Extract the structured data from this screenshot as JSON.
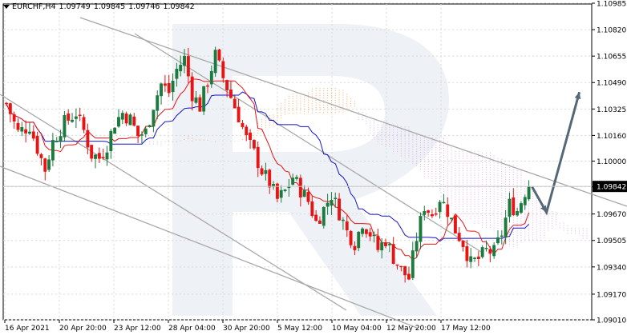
{
  "header": {
    "symbol": "EURCHF,H4",
    "open": "1.09749",
    "high": "1.09845",
    "low": "1.09746",
    "close": "1.09842"
  },
  "chart_data": {
    "type": "candlestick",
    "symbol": "EURCHF",
    "timeframe": "H4",
    "current_price": "1.09842",
    "ylim": [
      1.0901,
      1.1098
    ],
    "y_ticks": [
      "1.10985",
      "1.10820",
      "1.10655",
      "1.10490",
      "1.10325",
      "1.10160",
      "1.10000",
      "1.09840",
      "1.09670",
      "1.09505",
      "1.09340",
      "1.09170",
      "1.09010"
    ],
    "x_ticks": [
      "16 Apr 2021",
      "20 Apr 20:00",
      "23 Apr 12:00",
      "28 Apr 04:00",
      "30 Apr 20:00",
      "5 May 12:00",
      "10 May 04:00",
      "12 May 20:00",
      "17 May 12:00"
    ],
    "close_path": [
      [
        0,
        1.1036
      ],
      [
        3,
        1.1018
      ],
      [
        6,
        1.1022
      ],
      [
        8,
        1.1008
      ],
      [
        10,
        1.0995
      ],
      [
        12,
        1.1012
      ],
      [
        15,
        1.1024
      ],
      [
        18,
        1.103
      ],
      [
        20,
        1.1019
      ],
      [
        22,
        1.1004
      ],
      [
        24,
        1.1002
      ],
      [
        26,
        1.101
      ],
      [
        28,
        1.1024
      ],
      [
        30,
        1.103
      ],
      [
        32,
        1.1026
      ],
      [
        34,
        1.1016
      ],
      [
        36,
        1.1018
      ],
      [
        38,
        1.1035
      ],
      [
        40,
        1.1048
      ],
      [
        42,
        1.1043
      ],
      [
        44,
        1.1057
      ],
      [
        46,
        1.1064
      ],
      [
        48,
        1.1042
      ],
      [
        50,
        1.1034
      ],
      [
        52,
        1.105
      ],
      [
        54,
        1.1066
      ],
      [
        56,
        1.1052
      ],
      [
        58,
        1.104
      ],
      [
        60,
        1.1028
      ],
      [
        62,
        1.1014
      ],
      [
        64,
        1.1005
      ],
      [
        66,
        1.0994
      ],
      [
        68,
        1.0986
      ],
      [
        70,
        1.0976
      ],
      [
        72,
        1.0981
      ],
      [
        74,
        1.099
      ],
      [
        76,
        1.0982
      ],
      [
        78,
        1.0975
      ],
      [
        80,
        1.0962
      ],
      [
        82,
        1.097
      ],
      [
        84,
        1.0979
      ],
      [
        86,
        1.0968
      ],
      [
        88,
        1.0956
      ],
      [
        90,
        1.0949
      ],
      [
        92,
        1.0962
      ],
      [
        94,
        1.0955
      ],
      [
        96,
        1.0945
      ],
      [
        98,
        1.0951
      ],
      [
        100,
        1.094
      ],
      [
        102,
        1.0932
      ],
      [
        104,
        1.0927
      ],
      [
        106,
        1.0952
      ],
      [
        108,
        1.0972
      ],
      [
        110,
        1.0967
      ],
      [
        112,
        1.0977
      ],
      [
        114,
        1.0969
      ],
      [
        116,
        1.0957
      ],
      [
        118,
        1.0949
      ],
      [
        120,
        1.0936
      ],
      [
        122,
        1.0939
      ],
      [
        124,
        1.0944
      ],
      [
        126,
        1.0943
      ],
      [
        128,
        1.0955
      ],
      [
        130,
        1.0973
      ],
      [
        132,
        1.0969
      ],
      [
        134,
        1.0981
      ],
      [
        135,
        1.0984
      ]
    ],
    "series": [
      {
        "name": "Tenkan-sen",
        "color": "#e81414"
      },
      {
        "name": "Kijun-sen",
        "color": "#1212c8"
      },
      {
        "name": "Senkou Span A",
        "color": "#f5a053"
      },
      {
        "name": "Senkou Span B",
        "color": "#d9a7e8"
      }
    ],
    "forecast_arrow": {
      "from_price": 1.0984,
      "via_price": 1.0968,
      "to_price": 1.1043
    },
    "colors": {
      "bull": "#1b7a3e",
      "bear": "#e81414",
      "trendline": "#a8a8a8",
      "arrow": "#566878"
    },
    "grid": true,
    "watermark": "R"
  }
}
